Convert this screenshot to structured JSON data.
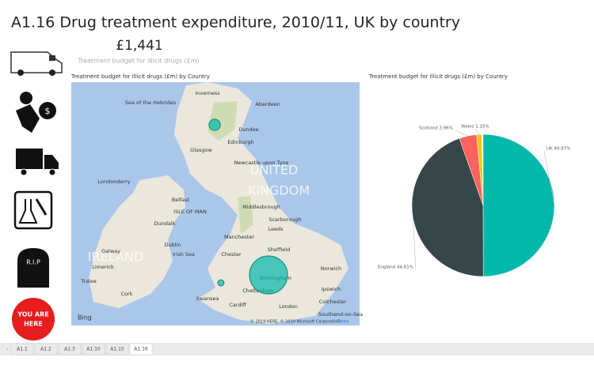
{
  "title": "A1.16 Drug treatment expenditure, 2010/11, UK by country",
  "card": {
    "value": "£1,441",
    "label": "Treatment budget for illicit drugs (£m)"
  },
  "icons": {
    "tombstone": "R.I.P",
    "here_line1": "YOU ARE",
    "here_line2": "HERE"
  },
  "map": {
    "title": "Treatment budget for illicit drugs (£m) by Country",
    "labels": [
      "Sea of the Hebrides",
      "Inverness",
      "Aberdeen",
      "Dundee",
      "Glasgow",
      "Edinburgh",
      "Newcastle upon Tyne",
      "Londonderry",
      "Belfast",
      "ISLE OF MAN",
      "Dundalk",
      "Middlesbrough",
      "Scarborough",
      "Leeds",
      "Manchester",
      "Sheffield",
      "Dublin",
      "Irish Sea",
      "IRELAND",
      "Galway",
      "Limerick",
      "Tralee",
      "Cork",
      "Chester",
      "Birmingham",
      "Norwich",
      "Ipswich",
      "Colchester",
      "Cheltenham",
      "London",
      "Swansea",
      "Cardiff",
      "Southend-on-Sea",
      "UNITED",
      "KINGDOM"
    ],
    "bing": "Bing",
    "copyright": "© 2019 HERE, © 2019 Microsoft Corporation",
    "terms": "Terms"
  },
  "chart_data": {
    "type": "pie",
    "title": "Treatment budget for illicit drugs (£m) by Country",
    "categories": [
      "UK",
      "England",
      "Scotland",
      "Wales"
    ],
    "values": [
      49.97,
      44.61,
      3.96,
      1.15
    ],
    "value_labels": [
      "UK 49.97%",
      "England 44.61%",
      "Scotland 3.96%",
      "Wales 1.15%"
    ],
    "colors": [
      "#01b8aa",
      "#374649",
      "#fd625e",
      "#f2c80f"
    ]
  },
  "tabs": [
    "A1.1",
    "A1.2",
    "A1.3",
    "A1.10",
    "A1.15",
    "A1.16"
  ]
}
